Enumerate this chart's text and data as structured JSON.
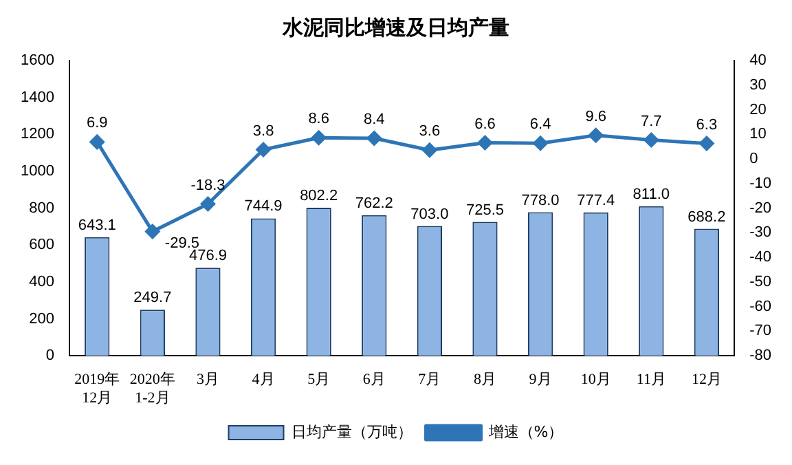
{
  "chart_data": {
    "type": "bar",
    "title": "水泥同比增速及日均产量",
    "categories": [
      "2019年\n12月",
      "2020年\n1-2月",
      "3月",
      "4月",
      "5月",
      "6月",
      "7月",
      "8月",
      "9月",
      "10月",
      "11月",
      "12月"
    ],
    "series": [
      {
        "name": "日均产量（万吨）",
        "color": "#8db4e2",
        "values": [
          643.1,
          249.7,
          476.9,
          744.9,
          802.2,
          762.2,
          703.0,
          725.5,
          778.0,
          777.4,
          811.0,
          688.2
        ],
        "value_labels": [
          "643.1",
          "249.7",
          "476.9",
          "744.9",
          "802.2",
          "762.2",
          "703.0",
          "725.5",
          "778.0",
          "777.4",
          "811.0",
          "688.2"
        ]
      },
      {
        "name": "增速（%）",
        "type": "line",
        "axis": "y2",
        "color": "#2e75b6",
        "values": [
          6.9,
          -29.5,
          -18.3,
          3.8,
          8.6,
          8.4,
          3.6,
          6.6,
          6.4,
          9.6,
          7.7,
          6.3
        ],
        "value_labels": [
          "6.9",
          "-29.5",
          "-18.3",
          "3.8",
          "8.6",
          "8.4",
          "3.6",
          "6.6",
          "6.4",
          "9.6",
          "7.7",
          "6.3"
        ]
      }
    ],
    "ylim": [
      0,
      1600
    ],
    "yticks": [
      0,
      200,
      400,
      600,
      800,
      1000,
      1200,
      1400,
      1600
    ],
    "y2lim": [
      -80,
      40
    ],
    "y2ticks": [
      -80,
      -70,
      -60,
      -50,
      -40,
      -30,
      -20,
      -10,
      0,
      10,
      20,
      30,
      40
    ],
    "legend": "bottom",
    "marker": "diamond",
    "grid": false
  }
}
